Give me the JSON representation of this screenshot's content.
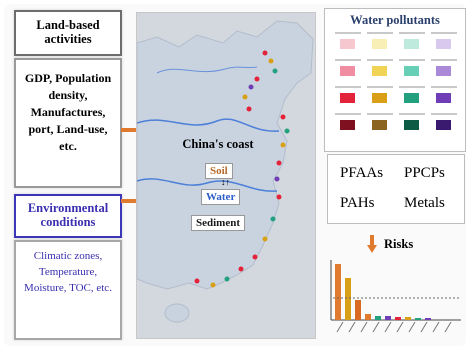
{
  "left": {
    "land_title": "Land-based activities",
    "land_items": "GDP, Population density, Manufactures, port, Land-use, etc.",
    "env_title": "Environmental conditions",
    "env_items": "Climatic zones, Temperature, Moisture, TOC, etc."
  },
  "map": {
    "coast_label": "China's coast",
    "soil": "Soil",
    "water": "Water",
    "sediment": "Sediment",
    "connector": "↕↑"
  },
  "legend": {
    "title": "Water pollutants",
    "colors": {
      "PFAAs": [
        "#f6c7cf",
        "#f08da0",
        "#e3233a",
        "#7f1020"
      ],
      "PPCPs": [
        "#f8efb7",
        "#f1d356",
        "#d9a017",
        "#8a6420"
      ],
      "PAHs": [
        "#bdeadd",
        "#67cfb6",
        "#23a07e",
        "#0d5a45"
      ],
      "Metals": [
        "#d9c9ee",
        "#a989d8",
        "#6f3eb6",
        "#3a1a6e"
      ]
    }
  },
  "pollutants": [
    "PFAAs",
    "PPCPs",
    "PAHs",
    "Metals"
  ],
  "risks": {
    "label": "Risks"
  },
  "colors": {
    "arrow_orange": "#e07a2e",
    "land_blue": "#a8b4c8"
  }
}
